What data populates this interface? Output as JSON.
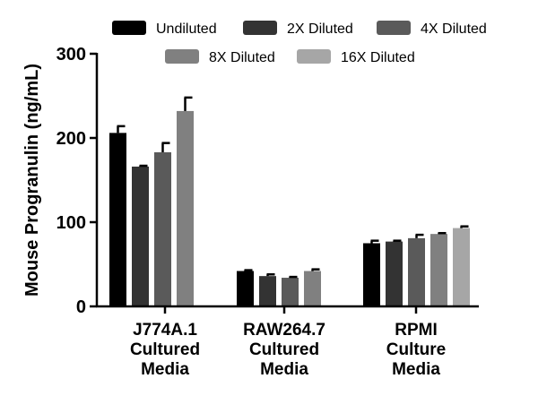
{
  "chart_data": {
    "type": "bar",
    "title": "",
    "xlabel": "",
    "ylabel": "Mouse Progranulin (ng/mL)",
    "ylim": [
      0,
      300
    ],
    "yticks": [
      "0",
      "100",
      "200",
      "300"
    ],
    "ytick_values": [
      0,
      100,
      200,
      300
    ],
    "grid": false,
    "legend_position": "top",
    "categories": [
      [
        "J774A.1",
        "Cultured",
        "Media"
      ],
      [
        "RAW264.7",
        "Cultured",
        "Media"
      ],
      [
        "RPMI",
        "Culture",
        "Media"
      ]
    ],
    "series": [
      {
        "name": "Undiluted",
        "color": "#000000",
        "values": [
          206,
          42,
          75
        ],
        "errors": [
          8,
          1,
          3
        ]
      },
      {
        "name": "2X Diluted",
        "color": "#333333",
        "values": [
          166,
          36,
          77
        ],
        "errors": [
          1,
          2,
          1
        ]
      },
      {
        "name": "4X Diluted",
        "color": "#5a5a5a",
        "values": [
          183,
          34,
          81
        ],
        "errors": [
          11,
          1,
          4
        ]
      },
      {
        "name": "8X Diluted",
        "color": "#808080",
        "values": [
          232,
          42,
          86
        ],
        "errors": [
          16,
          2,
          1
        ]
      },
      {
        "name": "16X Diluted",
        "color": "#a6a6a6",
        "values": [
          null,
          null,
          93
        ],
        "errors": [
          null,
          null,
          2
        ]
      }
    ]
  }
}
